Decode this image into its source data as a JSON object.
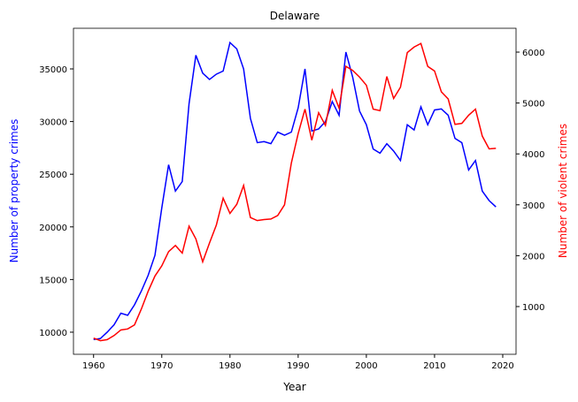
{
  "chart_data": {
    "type": "line",
    "title": "Delaware",
    "xlabel": "Year",
    "ylabel": "Number of property crimes",
    "y2label": "Number of violent crimes",
    "x": [
      1960,
      1961,
      1962,
      1963,
      1964,
      1965,
      1966,
      1967,
      1968,
      1969,
      1970,
      1971,
      1972,
      1973,
      1974,
      1975,
      1976,
      1977,
      1978,
      1979,
      1980,
      1981,
      1982,
      1983,
      1984,
      1985,
      1986,
      1987,
      1988,
      1989,
      1990,
      1991,
      1992,
      1993,
      1994,
      1995,
      1996,
      1997,
      1998,
      1999,
      2000,
      2001,
      2002,
      2003,
      2004,
      2005,
      2006,
      2007,
      2008,
      2009,
      2010,
      2011,
      2012,
      2013,
      2014,
      2015,
      2016,
      2017,
      2018,
      2019
    ],
    "series": [
      {
        "name": "Number of property crimes",
        "color": "#0000ff",
        "axis": "y",
        "values": [
          9300,
          9400,
          10000,
          10700,
          11800,
          11600,
          12600,
          13900,
          15400,
          17300,
          21800,
          25900,
          23400,
          24300,
          31700,
          36300,
          34600,
          34000,
          34500,
          34800,
          37500,
          36900,
          35000,
          30300,
          28000,
          28100,
          27900,
          29000,
          28700,
          29000,
          31300,
          35000,
          29100,
          29300,
          30000,
          31900,
          30600,
          36600,
          34200,
          31000,
          29700,
          27400,
          27000,
          27900,
          27200,
          26300,
          29700,
          29200,
          31400,
          29700,
          31100,
          31200,
          30600,
          28400,
          28000,
          25400,
          26300,
          23400,
          22500,
          21900
        ]
      },
      {
        "name": "Number of violent crimes",
        "color": "#ff0000",
        "axis": "y2",
        "values": [
          380,
          330,
          350,
          430,
          540,
          560,
          640,
          950,
          1300,
          1600,
          1800,
          2080,
          2200,
          2050,
          2580,
          2330,
          1880,
          2250,
          2600,
          3130,
          2830,
          3010,
          3380,
          2750,
          2690,
          2710,
          2720,
          2790,
          3000,
          3820,
          4400,
          4880,
          4270,
          4810,
          4560,
          5250,
          4900,
          5720,
          5640,
          5510,
          5350,
          4880,
          4850,
          5520,
          5090,
          5310,
          5990,
          6100,
          6170,
          5720,
          5630,
          5220,
          5080,
          4580,
          4600,
          4760,
          4880,
          4350,
          4100,
          4110
        ]
      }
    ],
    "xlim": [
      1957.05,
      2021.95
    ],
    "xticks": [
      1960,
      1970,
      1980,
      1990,
      2000,
      2010,
      2020
    ],
    "ylim": [
      7900,
      38860
    ],
    "yticks": [
      10000,
      15000,
      20000,
      25000,
      30000,
      35000
    ],
    "y2lim": [
      62,
      6469
    ],
    "y2ticks": [
      1000,
      2000,
      3000,
      4000,
      5000,
      6000
    ]
  }
}
